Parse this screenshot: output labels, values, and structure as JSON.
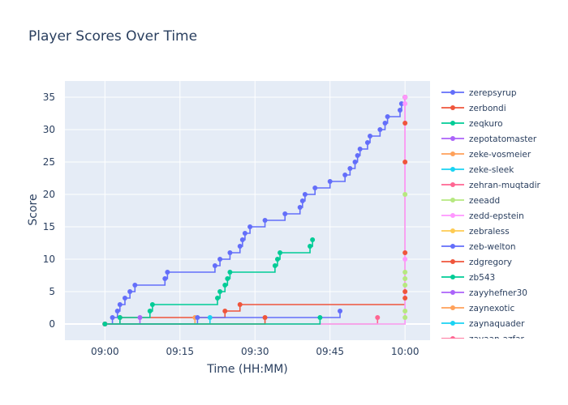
{
  "chart_data": {
    "type": "line",
    "line_shape": "step",
    "title": "Player Scores Over Time",
    "xlabel": "Time (HH:MM)",
    "ylabel": "Score",
    "xlim": [
      "08:52",
      "10:05"
    ],
    "ylim": [
      -2.5,
      37.5
    ],
    "x_ticks": [
      "09:00",
      "09:15",
      "09:30",
      "09:45",
      "10:00"
    ],
    "y_ticks": [
      0,
      5,
      10,
      15,
      20,
      25,
      30,
      35
    ],
    "grid": true,
    "plot_bgcolor": "#E5ECF6",
    "legend_position": "right",
    "series": [
      {
        "name": "zerepsyrup",
        "color": "#636EFA",
        "x": [
          "09:00",
          "09:01.5",
          "09:02.5",
          "09:03",
          "09:04",
          "09:05",
          "09:06",
          "09:12",
          "09:12.5",
          "09:22",
          "09:23",
          "09:25",
          "09:27",
          "09:27.5",
          "09:28",
          "09:29",
          "09:32",
          "09:36",
          "09:39",
          "09:39.5",
          "09:40",
          "09:42",
          "09:45",
          "09:48",
          "09:49",
          "09:50",
          "09:50.5",
          "09:51",
          "09:52.5",
          "09:53",
          "09:55",
          "09:56",
          "09:56.5",
          "09:59",
          "09:59.3",
          "10:00"
        ],
        "y": [
          0,
          1,
          2,
          3,
          4,
          5,
          6,
          7,
          8,
          9,
          10,
          11,
          12,
          13,
          14,
          15,
          16,
          17,
          18,
          19,
          20,
          21,
          22,
          23,
          24,
          25,
          26,
          27,
          28,
          29,
          30,
          31,
          32,
          33,
          34,
          35
        ]
      },
      {
        "name": "zerbondi",
        "color": "#EF553B",
        "x": [
          "09:00",
          "09:03",
          "09:24",
          "09:27",
          "10:00",
          "10:00",
          "10:00",
          "10:00",
          "10:00",
          "10:00"
        ],
        "y": [
          0,
          1,
          2,
          3,
          4,
          5,
          11,
          25,
          31,
          35
        ]
      },
      {
        "name": "zeqkuro",
        "color": "#00CC96",
        "x": [
          "09:00",
          "09:03",
          "09:09",
          "09:09.5",
          "09:22.5",
          "09:23",
          "09:24",
          "09:24.5",
          "09:25",
          "09:34",
          "09:34.5",
          "09:35",
          "09:41",
          "09:41.5"
        ],
        "y": [
          0,
          1,
          2,
          3,
          4,
          5,
          6,
          7,
          8,
          9,
          10,
          11,
          12,
          13
        ]
      },
      {
        "name": "zepotatomaster",
        "color": "#AB63FA",
        "x": [
          "09:00",
          "09:07"
        ],
        "y": [
          0,
          1
        ]
      },
      {
        "name": "zeke-vosmeier",
        "color": "#FFA15A",
        "x": [
          "09:00",
          "09:18"
        ],
        "y": [
          0,
          1
        ]
      },
      {
        "name": "zeke-sleek",
        "color": "#19D3F3",
        "x": [
          "09:00",
          "09:21"
        ],
        "y": [
          0,
          1
        ]
      },
      {
        "name": "zehran-muqtadir",
        "color": "#FF6692",
        "x": [
          "09:00",
          "09:54.5"
        ],
        "y": [
          0,
          1
        ]
      },
      {
        "name": "zeeadd",
        "color": "#B6E880",
        "x": [
          "09:00",
          "10:00",
          "10:00",
          "10:00",
          "10:00",
          "10:00",
          "10:00"
        ],
        "y": [
          0,
          1,
          2,
          6,
          7,
          8,
          20
        ]
      },
      {
        "name": "zedd-epstein",
        "color": "#FF97FF",
        "x": [
          "09:00",
          "10:00",
          "10:00",
          "10:00"
        ],
        "y": [
          0,
          10,
          34,
          35
        ]
      },
      {
        "name": "zebraless",
        "color": "#FECB52",
        "x": [
          "09:00"
        ],
        "y": [
          0
        ]
      },
      {
        "name": "zeb-welton",
        "color": "#636EFA",
        "x": [
          "09:00",
          "09:18.5",
          "09:47"
        ],
        "y": [
          0,
          1,
          2
        ]
      },
      {
        "name": "zdgregory",
        "color": "#EF553B",
        "x": [
          "09:00",
          "09:32"
        ],
        "y": [
          0,
          1
        ]
      },
      {
        "name": "zb543",
        "color": "#00CC96",
        "x": [
          "09:00",
          "09:43"
        ],
        "y": [
          0,
          1
        ]
      },
      {
        "name": "zayyhefner30",
        "color": "#AB63FA",
        "x": [],
        "y": []
      },
      {
        "name": "zaynexotic",
        "color": "#FFA15A",
        "x": [],
        "y": []
      },
      {
        "name": "zaynaquader",
        "color": "#19D3F3",
        "x": [],
        "y": []
      },
      {
        "name": "zayaan-azfar",
        "color": "#FF6692",
        "x": [],
        "y": []
      }
    ]
  }
}
